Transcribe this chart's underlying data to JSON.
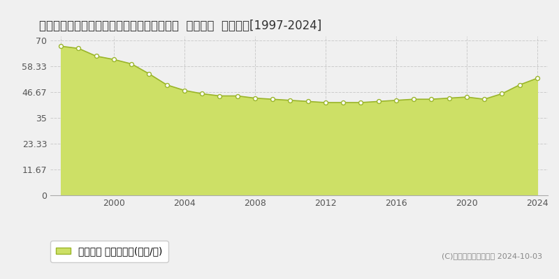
{
  "title": "愛知県名古屋市中川区柳島町５丁目１９番１  基準地価  地価推移[1997-2024]",
  "years": [
    1997,
    1998,
    1999,
    2000,
    2001,
    2002,
    2003,
    2004,
    2005,
    2006,
    2007,
    2008,
    2009,
    2010,
    2011,
    2012,
    2013,
    2014,
    2015,
    2016,
    2017,
    2018,
    2019,
    2020,
    2021,
    2022,
    2023,
    2024
  ],
  "values": [
    67.5,
    66.5,
    63.0,
    61.5,
    59.5,
    55.0,
    50.0,
    47.5,
    46.0,
    45.0,
    45.0,
    44.0,
    43.5,
    43.0,
    42.5,
    42.0,
    42.0,
    42.0,
    42.5,
    43.0,
    43.5,
    43.5,
    44.0,
    44.5,
    43.5,
    46.0,
    50.0,
    53.0
  ],
  "line_color": "#9ab52a",
  "fill_color": "#cde066",
  "marker_color": "#ffffff",
  "marker_edge_color": "#9ab52a",
  "background_color": "#f0f0f0",
  "plot_bg_color": "#f0f0f0",
  "grid_color": "#cccccc",
  "yticks": [
    0,
    11.67,
    23.33,
    35,
    46.67,
    58.33,
    70
  ],
  "ytick_labels": [
    "0",
    "11.67",
    "23.33",
    "35",
    "46.67",
    "58.33",
    "70"
  ],
  "xticks": [
    1997,
    2000,
    2004,
    2008,
    2012,
    2016,
    2020,
    2024
  ],
  "xtick_labels": [
    "",
    "2000",
    "2004",
    "2008",
    "2012",
    "2016",
    "2020",
    "2024"
  ],
  "ylim": [
    0,
    72
  ],
  "xlim": [
    1996.4,
    2024.6
  ],
  "legend_label": "基準地価 平均嵪単価(万円/嵪)",
  "copyright_text": "(C)土地価格ドットコム 2024-10-03",
  "title_fontsize": 12,
  "tick_fontsize": 9,
  "legend_fontsize": 10
}
